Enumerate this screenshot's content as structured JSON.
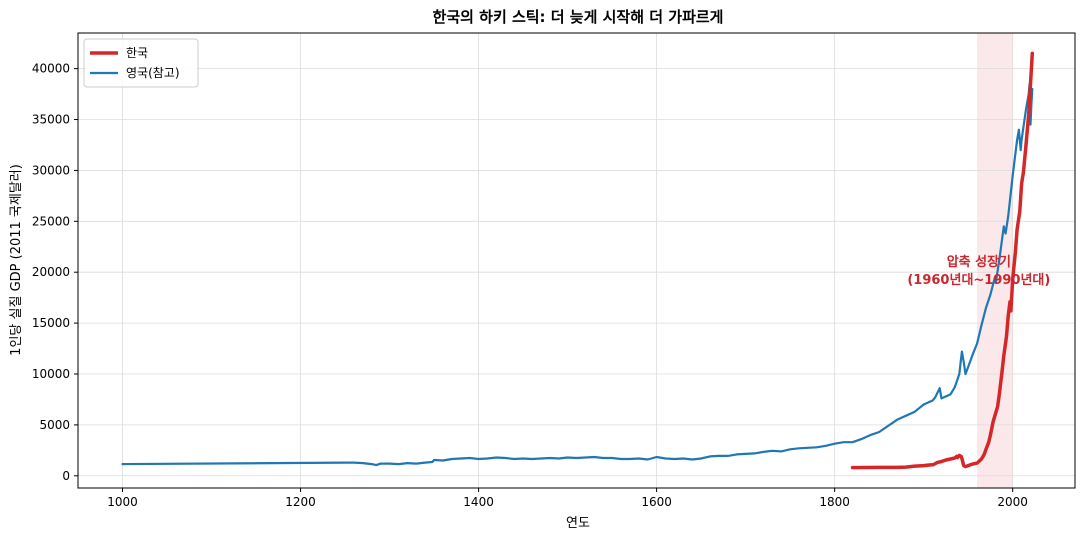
{
  "chart_data": {
    "type": "line",
    "title": "한국의 하키 스틱: 더 늦게 시작해 더 가파르게",
    "xlabel": "연도",
    "ylabel": "1인당 실질 GDP (2011 국제달러)",
    "xlim": [
      950,
      2070
    ],
    "ylim": [
      -1200,
      43500
    ],
    "xticks": [
      1000,
      1200,
      1400,
      1600,
      1800,
      2000
    ],
    "yticks": [
      0,
      5000,
      10000,
      15000,
      20000,
      25000,
      30000,
      35000,
      40000
    ],
    "grid": true,
    "legend_position": "top-left",
    "shaded_region": {
      "x_start": 1960,
      "x_end": 2000,
      "color": "#f7d9dc"
    },
    "annotation": {
      "line1": "압축 성장기",
      "line2": "(1960년대~1990년대)",
      "x": 1962,
      "y": 20200,
      "color": "#c8282e"
    },
    "series": [
      {
        "name": "한국",
        "color": "#d62728",
        "x": [
          1820,
          1850,
          1870,
          1880,
          1890,
          1900,
          1905,
          1911,
          1915,
          1920,
          1925,
          1930,
          1935,
          1937,
          1938,
          1940,
          1942,
          1943,
          1945,
          1947,
          1950,
          1953,
          1955,
          1960,
          1965,
          1968,
          1970,
          1973,
          1975,
          1978,
          1980,
          1983,
          1985,
          1988,
          1990,
          1993,
          1995,
          1997,
          1998,
          2000,
          2003,
          2005,
          2008,
          2010,
          2012,
          2015,
          2018,
          2020,
          2022
        ],
        "y": [
          800,
          820,
          820,
          850,
          950,
          1000,
          1050,
          1100,
          1300,
          1400,
          1550,
          1650,
          1750,
          1900,
          1800,
          2000,
          1900,
          1700,
          1000,
          900,
          1000,
          1100,
          1150,
          1250,
          1650,
          2100,
          2600,
          3300,
          4000,
          5300,
          5900,
          6800,
          8000,
          10200,
          11800,
          13700,
          15700,
          17100,
          16200,
          19300,
          22000,
          24200,
          26000,
          28700,
          29800,
          32500,
          35500,
          38500,
          41500
        ]
      },
      {
        "name": "영국(참고)",
        "color": "#1f77b4",
        "x": [
          1000,
          1252,
          1260,
          1270,
          1280,
          1285,
          1290,
          1300,
          1310,
          1320,
          1330,
          1340,
          1348,
          1350,
          1360,
          1370,
          1380,
          1390,
          1400,
          1410,
          1420,
          1430,
          1440,
          1450,
          1460,
          1470,
          1480,
          1490,
          1500,
          1510,
          1520,
          1530,
          1540,
          1550,
          1560,
          1570,
          1580,
          1590,
          1600,
          1610,
          1620,
          1630,
          1640,
          1650,
          1660,
          1670,
          1680,
          1690,
          1700,
          1710,
          1720,
          1730,
          1740,
          1750,
          1760,
          1770,
          1780,
          1790,
          1800,
          1810,
          1820,
          1830,
          1840,
          1850,
          1860,
          1870,
          1880,
          1890,
          1900,
          1910,
          1913,
          1918,
          1920,
          1930,
          1935,
          1940,
          1943,
          1945,
          1947,
          1950,
          1955,
          1960,
          1965,
          1970,
          1975,
          1980,
          1981,
          1985,
          1990,
          1992,
          1995,
          2000,
          2005,
          2007,
          2009,
          2010,
          2015,
          2018,
          2019,
          2020,
          2021,
          2022
        ],
        "y": [
          1150,
          1300,
          1300,
          1250,
          1150,
          1050,
          1200,
          1200,
          1150,
          1250,
          1200,
          1300,
          1350,
          1550,
          1500,
          1650,
          1700,
          1750,
          1650,
          1700,
          1800,
          1750,
          1650,
          1700,
          1650,
          1700,
          1750,
          1700,
          1800,
          1750,
          1800,
          1850,
          1750,
          1750,
          1650,
          1650,
          1700,
          1600,
          1850,
          1700,
          1650,
          1700,
          1600,
          1700,
          1900,
          1950,
          1950,
          2100,
          2150,
          2200,
          2350,
          2450,
          2400,
          2600,
          2700,
          2750,
          2800,
          2950,
          3150,
          3300,
          3300,
          3600,
          4000,
          4300,
          4900,
          5500,
          5900,
          6300,
          7000,
          7400,
          7700,
          8600,
          7600,
          8000,
          8700,
          10000,
          12200,
          11200,
          10000,
          10700,
          11900,
          13000,
          14800,
          16500,
          17800,
          19500,
          19000,
          21200,
          24500,
          23800,
          25500,
          29500,
          33000,
          34000,
          32000,
          33000,
          36000,
          37500,
          38500,
          34500,
          36500,
          38000
        ]
      }
    ]
  }
}
